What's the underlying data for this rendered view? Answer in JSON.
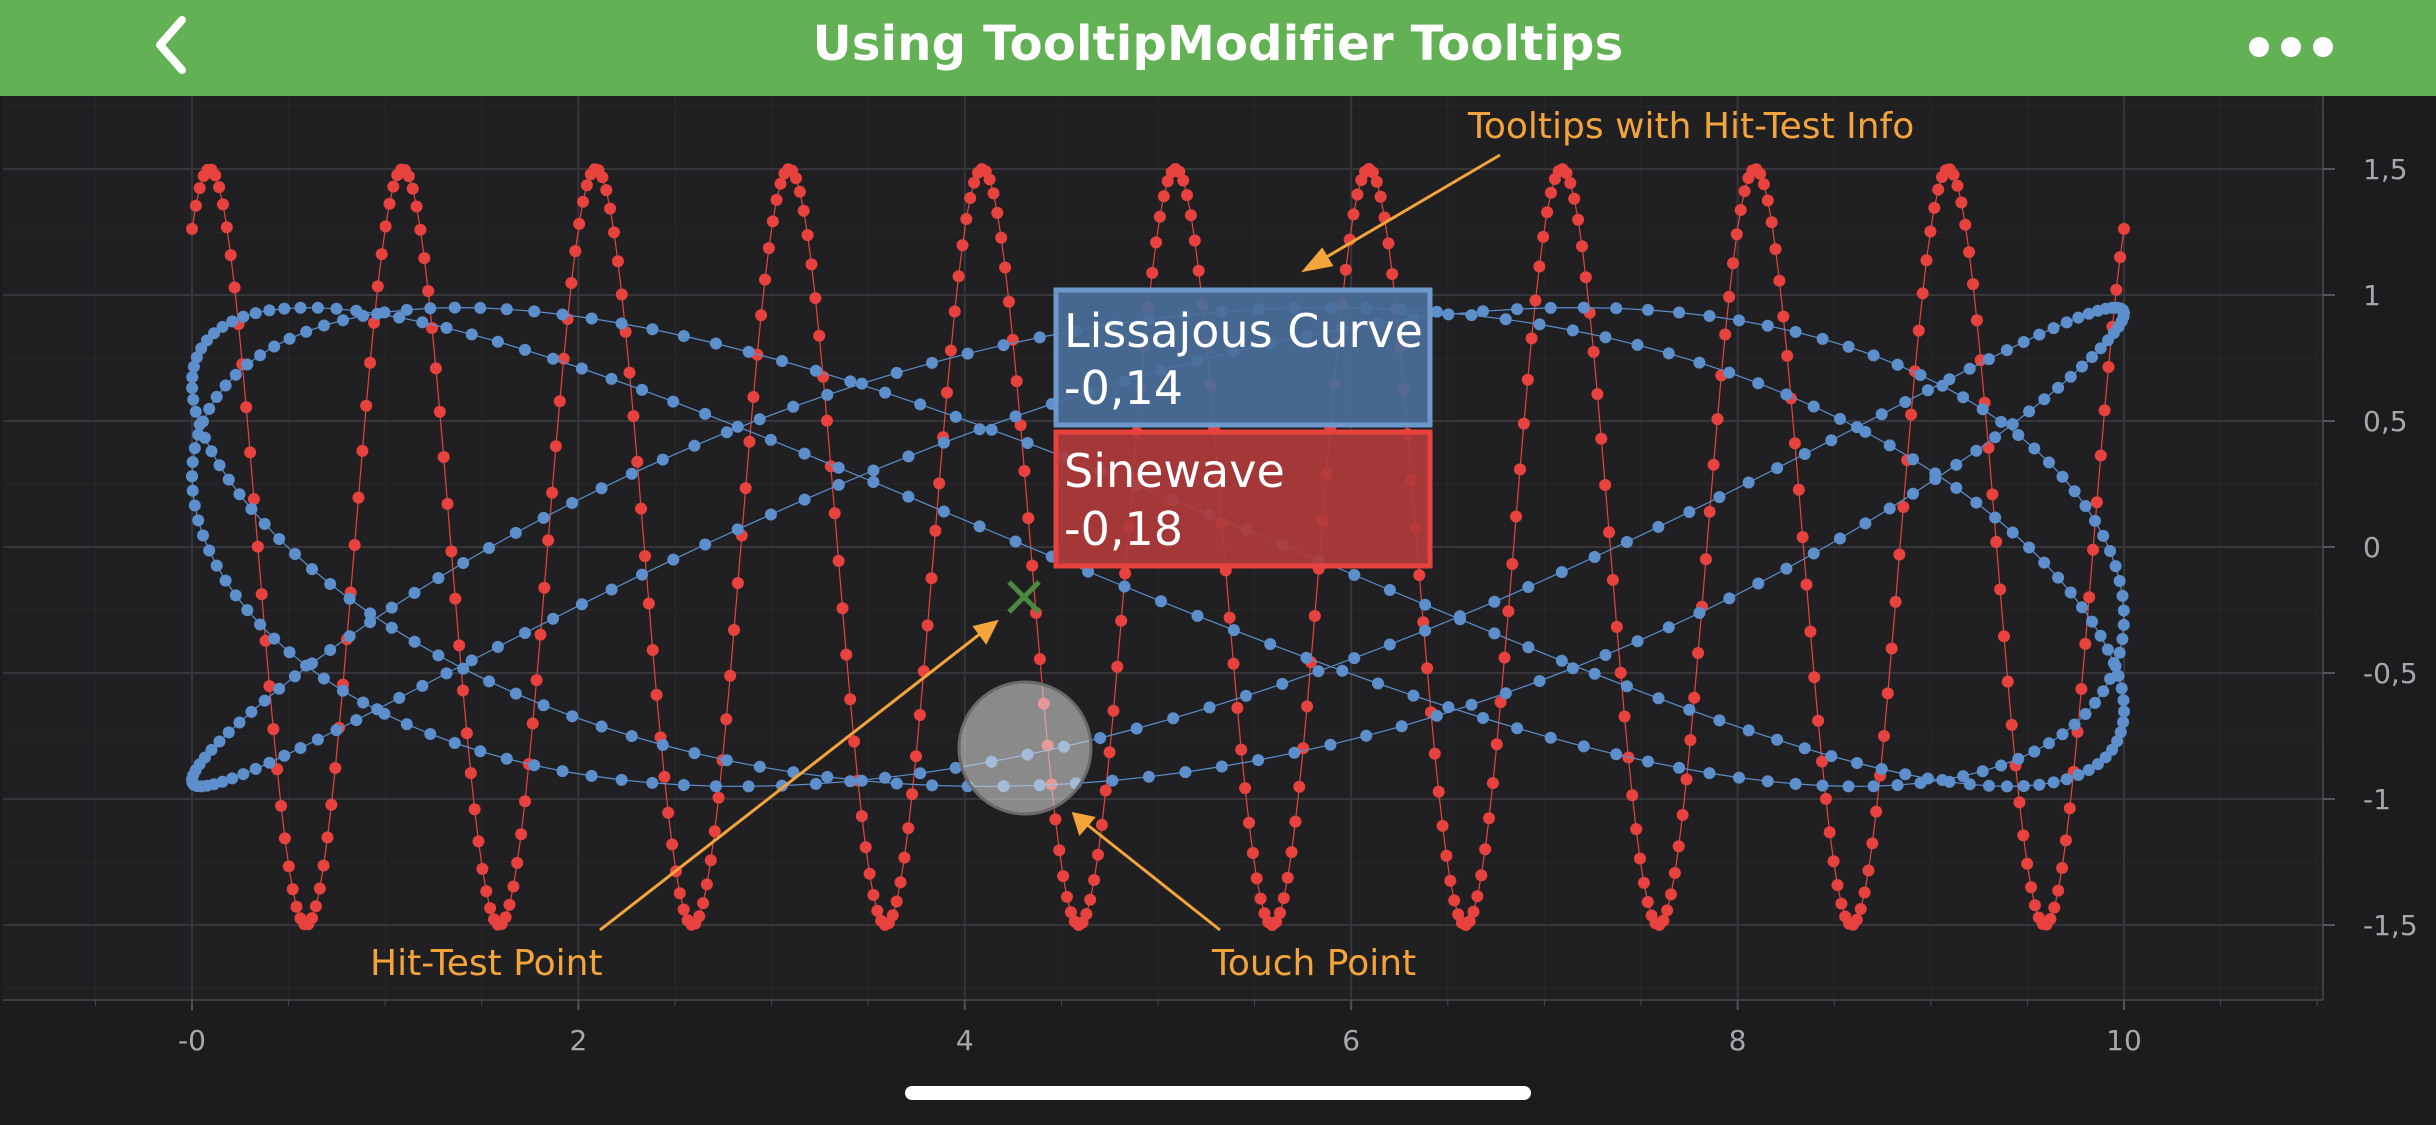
{
  "nav": {
    "title": "Using TooltipModifier Tooltips",
    "back_icon": "chevron-left-icon",
    "more_icon": "ellipsis-icon",
    "bar_color": "#62b255"
  },
  "chart_data": {
    "type": "scatter",
    "title": "",
    "xlabel": "",
    "ylabel": "",
    "xlim": [
      -0.95,
      11.5
    ],
    "ylim": [
      -1.8,
      1.8
    ],
    "x_ticks": [
      0,
      2,
      4,
      6,
      8,
      10
    ],
    "x_tick_labels": [
      "-0",
      "2",
      "4",
      "6",
      "8",
      "10"
    ],
    "y_ticks": [
      1.5,
      1,
      0.5,
      0,
      -0.5,
      -1,
      -1.5
    ],
    "y_tick_labels": [
      "1,5",
      "1",
      "0,5",
      "0",
      "-0,5",
      "-1",
      "-1,5"
    ],
    "y_axis_position": "right",
    "grid": true,
    "series": [
      {
        "name": "Sinewave",
        "color": "#e8423e",
        "line_width": 1,
        "marker": "circle",
        "x_range": [
          0,
          10
        ],
        "points": 500,
        "formula": "1.5*sin(2*pi*x + 1.0)",
        "amplitude": 1.5,
        "frequency": 1.0,
        "phase": 1.0
      },
      {
        "name": "Lissajous Curve",
        "color": "#5c8fcc",
        "line_width": 1,
        "marker": "circle",
        "points": 500,
        "x_range": [
          0,
          10
        ],
        "y_amplitude": 0.95,
        "t_range": [
          0,
          6.2832
        ],
        "x_formula": "5 - 5*cos(3*t)",
        "y_formula": "0.95*sin(5*t+0.3)"
      }
    ],
    "tooltip": {
      "items": [
        {
          "series": "Lissajous Curve",
          "value": "-0,14",
          "bg": "#4a6e9a",
          "border": "#6d98cc"
        },
        {
          "series": "Sinewave",
          "value": "-0,18",
          "bg": "#b03a3a",
          "border": "#e8423e"
        }
      ]
    },
    "hit_test_point": {
      "x": 4.3,
      "y": -0.2
    },
    "touch_point": {
      "x": 4.3,
      "y": -0.8
    },
    "annotations": [
      {
        "text": "Tooltips with Hit-Test Info",
        "color": "#f3a43a"
      },
      {
        "text": "Hit-Test Point",
        "color": "#f3a43a"
      },
      {
        "text": "Touch Point",
        "color": "#f3a43a"
      }
    ]
  }
}
